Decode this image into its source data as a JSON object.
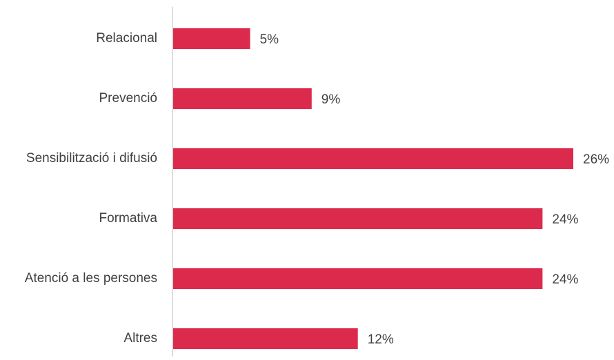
{
  "chart_data": {
    "type": "bar",
    "orientation": "horizontal",
    "categories": [
      "Relacional",
      "Prevenció",
      "Sensibilització i difusió",
      "Formativa",
      "Atenció a les persones",
      "Altres"
    ],
    "values": [
      5,
      9,
      26,
      24,
      24,
      12
    ],
    "value_labels": [
      "5%",
      "9%",
      "26%",
      "24%",
      "24%",
      "12%"
    ],
    "xlim": [
      0,
      26
    ],
    "grid": false,
    "legend": "none",
    "bar_color": "#DC2A4C",
    "axis_color": "#D0D0D0"
  }
}
